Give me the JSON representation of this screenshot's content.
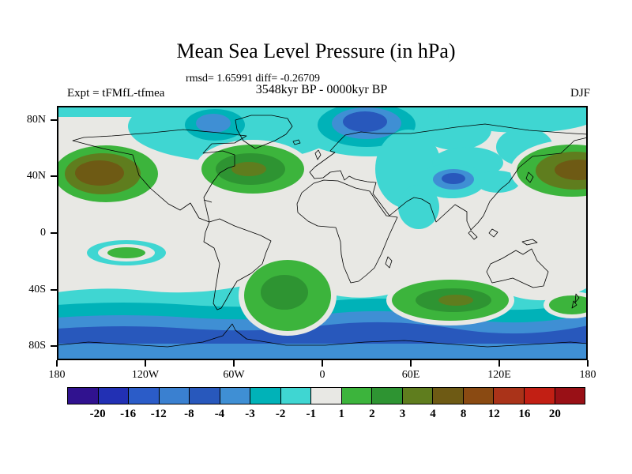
{
  "header": {
    "title": "Mean Sea Level Pressure (in hPa)",
    "stats": "rmsd= 1.65991 diff= -0.26709",
    "comparison": "3548kyr BP - 0000kyr BP",
    "experiment": "Expt = tFMfL-tfmea",
    "season": "DJF"
  },
  "axes": {
    "lat_ticks": [
      "80N",
      "40N",
      "0",
      "40S",
      "80S"
    ],
    "lon_ticks": [
      "180",
      "120W",
      "60W",
      "0",
      "60E",
      "120E",
      "180"
    ]
  },
  "colorbar": {
    "labels": [
      "-20",
      "-16",
      "-12",
      "-8",
      "-4",
      "-3",
      "-2",
      "-1",
      "1",
      "2",
      "3",
      "4",
      "8",
      "12",
      "16",
      "20"
    ],
    "colors": [
      "#30128f",
      "#2230b4",
      "#2b5cc8",
      "#3a80d0",
      "#2858bc",
      "#3f8fd4",
      "#00b2b8",
      "#3fd6d2",
      "#e8e8e4",
      "#3cb43c",
      "#2e9432",
      "#5f7d1e",
      "#6e5a14",
      "#8a4a12",
      "#aa3319",
      "#c21f14",
      "#991016"
    ]
  },
  "map_colors": {
    "background_gray": "#e8e8e4",
    "cyan_neg1to2": "#3fd6d2",
    "teal_neg2to3": "#00b2b8",
    "blue_neg3to4": "#3f8fd4",
    "darkblue_neg4to8": "#2858bc",
    "green_pos1to2": "#3cb43c",
    "darkgreen_pos2to3": "#2e9432",
    "olive_pos3to4": "#5f7d1e",
    "brown_pos4to8": "#6e5a14",
    "coastline": "#000000"
  },
  "chart_data": {
    "type": "heatmap",
    "subtype": "filled-contour-world-map",
    "title": "Mean Sea Level Pressure (in hPa)",
    "units": "hPa",
    "stats": {
      "rmsd": 1.65991,
      "diff": -0.26709
    },
    "comparison": "3548kyr BP - 0000kyr BP",
    "experiment": "Expt = tFMfL-tfmea",
    "season": "DJF",
    "projection": "equirectangular",
    "lon_range": [
      -180,
      180
    ],
    "lat_range": [
      -90,
      90
    ],
    "lat_tick_values": [
      80,
      40,
      0,
      -40,
      -80
    ],
    "lon_tick_values": [
      -180,
      -120,
      -60,
      0,
      60,
      120,
      180
    ],
    "contour_levels": [
      -20,
      -16,
      -12,
      -8,
      -4,
      -3,
      -2,
      -1,
      1,
      2,
      3,
      4,
      8,
      12,
      16,
      20
    ],
    "legend_position": "bottom",
    "features": [
      {
        "region": "North Pacific / Gulf of Alaska (~40N, 180-140W)",
        "anomaly_hPa": "+4 to +8"
      },
      {
        "region": "Northeast Asia / Northwest Pacific (~40N, 140E-180)",
        "anomaly_hPa": "+4 to +8"
      },
      {
        "region": "North Atlantic (~45N, 70W-10W)",
        "anomaly_hPa": "+2 to +4"
      },
      {
        "region": "Arctic: Scandinavia-Barents sector",
        "anomaly_hPa": "-4 to -8"
      },
      {
        "region": "Greenland / high-latitude North Atlantic",
        "anomaly_hPa": "-1 to -3"
      },
      {
        "region": "Tibetan Plateau (~35N, 90E)",
        "anomaly_hPa": "-4 to -8"
      },
      {
        "region": "Central Asia extending to India",
        "anomaly_hPa": "-1 to -2"
      },
      {
        "region": "Subtropical South America / South Atlantic (~30S)",
        "anomaly_hPa": "+1 to +3"
      },
      {
        "region": "South Indian Ocean (~45S, 60E-110E)",
        "anomaly_hPa": "+2 to +4"
      },
      {
        "region": "Southeast Pacific (~35S, 110W)",
        "anomaly_hPa": "+1 to +2"
      },
      {
        "region": "Southern Ocean circumpolar band (55S-80S)",
        "anomaly_hPa": "-2 to -8"
      },
      {
        "region": "Tropics and remaining mid-latitudes",
        "anomaly_hPa": "-1 to +1"
      }
    ]
  }
}
